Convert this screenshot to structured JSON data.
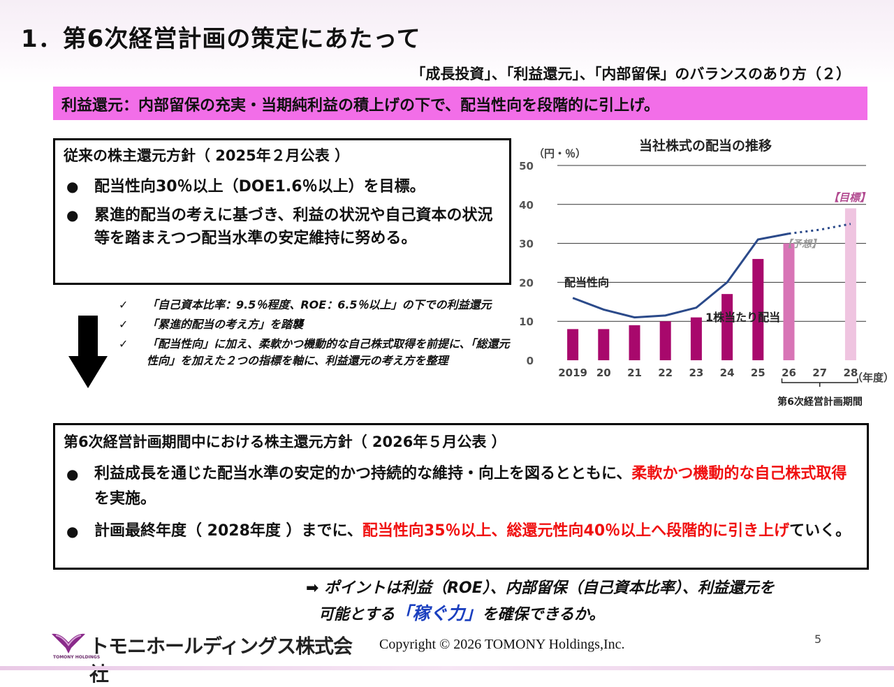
{
  "title": "1．第6次経営計画の策定にあたって",
  "subtitle": "「成長投資」、「利益還元」、「内部留保」のバランスのあり方（２）",
  "banner": "利益還元：内部留保の充実・当期純利益の積上げの下で、配当性向を段階的に引上げ。",
  "policy_old": {
    "heading": "従来の株主還元方針（ 2025年２月公表 ）",
    "bullets": [
      "配当性向30％以上（DOE1.6％以上）を目標。",
      "累進的配当の考えに基づき、利益の状況や自己資本の状況等を踏まえつつ配当水準の安定維持に努める。"
    ]
  },
  "checks": [
    "「自己資本比率：9.5％程度、ROE：6.5％以上」の下での利益還元",
    "「累進的配当の考え方」を踏襲",
    "「配当性向」に加え、柔軟かつ機動的な自己株式取得を前提に、「総還元性向」を加えた２つの指標を軸に、利益還元の考え方を整理"
  ],
  "policy_new": {
    "heading": "第6次経営計画期間中における株主還元方針（ 2026年５月公表 ）",
    "b1_text": "利益成長を通じた配当水準の安定的かつ持続的な維持・向上を図るとともに、",
    "b1_red": "柔軟かつ機動的な自己株式取得",
    "b1_tail": "を実施。",
    "b2_text": "計画最終年度（ 2028年度 ）までに、",
    "b2_red": "配当性向35％以上、総還元性向40％以上へ段階的に引き上げ",
    "b2_tail": "ていく。"
  },
  "point": {
    "line1": "➡ ポイントは利益（ROE）、内部留保（自己資本比率）、利益還元を",
    "line2_pre": "可能とする",
    "line2_blue": "「稼ぐ力」",
    "line2_post": "を確保できるか。"
  },
  "footer": {
    "company": "トモニホールディングス株式会社",
    "logo_sub": "TOMONY HOLDINGS",
    "copyright": "Copyright © 2026 TOMONY Holdings,Inc.",
    "page": "5"
  },
  "chart_data": {
    "type": "bar+line",
    "title": "当社株式の配当の推移",
    "unit_label": "（円・％）",
    "x_unit": "（年度）",
    "categories": [
      "2019",
      "20",
      "21",
      "22",
      "23",
      "24",
      "25",
      "26",
      "27",
      "28"
    ],
    "ylim": [
      0,
      50
    ],
    "yticks": [
      0,
      10,
      20,
      30,
      40,
      50
    ],
    "grid": true,
    "series": [
      {
        "name": "1株当たり配当",
        "type": "bar",
        "values": [
          8,
          8,
          9,
          10,
          11,
          17,
          26,
          30,
          null,
          39
        ],
        "colors": [
          "#a8086c",
          "#a8086c",
          "#a8086c",
          "#a8086c",
          "#a8086c",
          "#a8086c",
          "#a8086c",
          "#d875b6",
          null,
          "#efc4e0"
        ]
      },
      {
        "name": "配当性向",
        "type": "line",
        "color": "#2b4a8a",
        "values": [
          16,
          13,
          11,
          11.5,
          13.5,
          20,
          31,
          32.5,
          null,
          null
        ],
        "projection": {
          "values": [
            32.5,
            33.5,
            35
          ],
          "x_from": "26",
          "x_to": "28"
        }
      }
    ],
    "annotations": {
      "forecast": "【予想】",
      "target": "【目標】",
      "period": "第6次経営計画期間"
    }
  }
}
